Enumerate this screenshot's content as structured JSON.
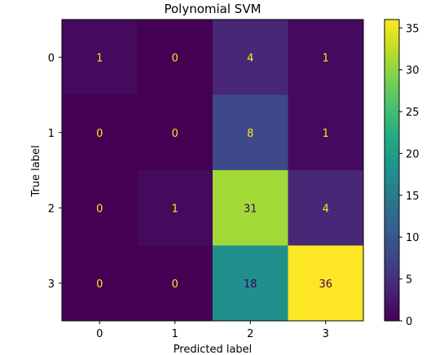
{
  "chart_data": {
    "type": "heatmap",
    "title": "Polynomial SVM",
    "xlabel": "Predicted label",
    "ylabel": "True label",
    "x_categories": [
      "0",
      "1",
      "2",
      "3"
    ],
    "y_categories": [
      "0",
      "1",
      "2",
      "3"
    ],
    "values": [
      [
        1,
        0,
        4,
        1
      ],
      [
        0,
        0,
        8,
        1
      ],
      [
        0,
        1,
        31,
        4
      ],
      [
        0,
        0,
        18,
        36
      ]
    ],
    "colormap": "viridis",
    "colorbar": {
      "range": [
        0,
        36
      ],
      "ticks": [
        "0",
        "5",
        "10",
        "15",
        "20",
        "25",
        "30",
        "35"
      ]
    },
    "grid": false
  }
}
